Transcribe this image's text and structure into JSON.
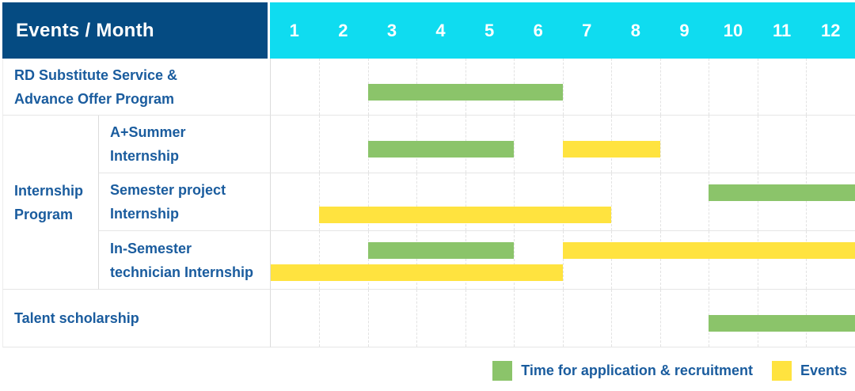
{
  "colors": {
    "header_bg": "#054B82",
    "months_bg": "#0FDCF0",
    "text_blue": "#1A5C9E",
    "application": "#8BC46A",
    "events": "#FFE33F",
    "grid_dashed": "#E2E2E2",
    "grid_solid": "#E6E6E6"
  },
  "chart_data": {
    "type": "bar",
    "subtype": "gantt-timeline",
    "title": "Events / Month",
    "x": {
      "unit": "month",
      "ticks": [
        "1",
        "2",
        "3",
        "4",
        "5",
        "6",
        "7",
        "8",
        "9",
        "10",
        "11",
        "12"
      ],
      "range": [
        1,
        12
      ],
      "grid": "dashed-vertical"
    },
    "legend_position": "bottom-right",
    "legend": [
      {
        "key": "application",
        "label": "Time for application & recruitment",
        "color": "#8BC46A"
      },
      {
        "key": "events",
        "label": "Events",
        "color": "#FFE33F"
      }
    ],
    "groups": [
      {
        "label": "Internship Program",
        "lines": [
          "Internship",
          "Program"
        ],
        "row_start": 2,
        "row_span": 3
      }
    ],
    "rows": [
      {
        "group": "",
        "label": "RD Substitute Service & Advance Offer Program",
        "label_lines": [
          "RD Substitute Service &",
          "Advance Offer Program"
        ],
        "bars": [
          {
            "series": "application",
            "start_month": 3,
            "end_month": 6,
            "lane": "center"
          }
        ]
      },
      {
        "group": "Internship Program",
        "label": "A+Summer Internship",
        "label_lines": [
          "A+Summer",
          "Internship"
        ],
        "bars": [
          {
            "series": "application",
            "start_month": 3,
            "end_month": 5,
            "lane": "center"
          },
          {
            "series": "events",
            "start_month": 7,
            "end_month": 8,
            "lane": "center"
          }
        ]
      },
      {
        "group": "Internship Program",
        "label": "Semester project Internship",
        "label_lines": [
          "Semester project",
          "Internship"
        ],
        "bars": [
          {
            "series": "application",
            "start_month": 10,
            "end_month": 12,
            "lane": "top"
          },
          {
            "series": "events",
            "start_month": 2,
            "end_month": 7,
            "lane": "bottom"
          }
        ]
      },
      {
        "group": "Internship Program",
        "label": "In-Semester technician Internship",
        "label_lines": [
          "In-Semester",
          "technician Internship"
        ],
        "bars": [
          {
            "series": "application",
            "start_month": 3,
            "end_month": 5,
            "lane": "top"
          },
          {
            "series": "events",
            "start_month": 7,
            "end_month": 12,
            "lane": "top"
          },
          {
            "series": "events",
            "start_month": 1,
            "end_month": 6,
            "lane": "bottom"
          }
        ]
      },
      {
        "group": "",
        "label": "Talent scholarship",
        "label_lines": [
          "Talent scholarship"
        ],
        "bars": [
          {
            "series": "application",
            "start_month": 10,
            "end_month": 12,
            "lane": "center"
          }
        ]
      }
    ]
  }
}
